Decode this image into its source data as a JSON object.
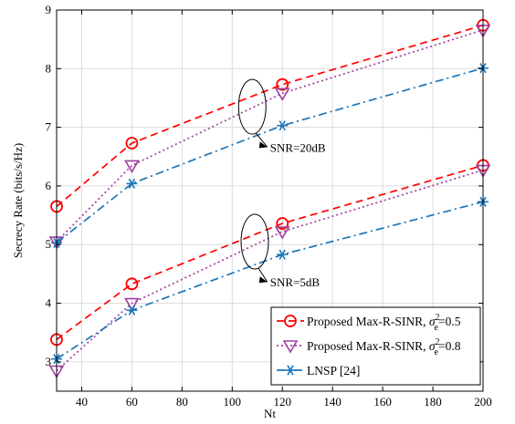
{
  "chart_data": {
    "type": "line",
    "xlabel": "Nt",
    "ylabel": "Secrecy Rate (bits/s/Hz)",
    "xlim": [
      30,
      200
    ],
    "ylim": [
      2.5,
      9
    ],
    "x_ticks": [
      40,
      60,
      80,
      100,
      120,
      140,
      160,
      180,
      200
    ],
    "y_ticks": [
      3,
      4,
      5,
      6,
      7,
      8,
      9
    ],
    "x": [
      30,
      60,
      120,
      200
    ],
    "grid": true,
    "legend_position": "bottom-right",
    "series": [
      {
        "name": "Proposed Max-R-SINR, σe²=0.5",
        "legend": {
          "prefix": "Proposed Max-R-SINR, ",
          "sigma": "σ",
          "sup": "2",
          "sub": "e",
          "suffix": "=0.5"
        },
        "snr": "20dB",
        "color": "#ff0000",
        "dash": "dashed",
        "marker": "circle",
        "values": [
          5.65,
          6.73,
          7.73,
          8.74
        ]
      },
      {
        "name": "Proposed Max-R-SINR, σe²=0.8",
        "legend": {
          "prefix": "Proposed Max-R-SINR, ",
          "sigma": "σ",
          "sup": "2",
          "sub": "e",
          "suffix": "=0.8"
        },
        "snr": "20dB",
        "color": "#a040a0",
        "dash": "dotted",
        "marker": "triangle-down",
        "values": [
          5.05,
          6.35,
          7.58,
          8.66
        ]
      },
      {
        "name": "LNSP [24]",
        "legend": {
          "prefix": "LNSP [24]",
          "sigma": "",
          "sup": "",
          "sub": "",
          "suffix": ""
        },
        "snr": "20dB",
        "color": "#1a75b8",
        "dash": "dashdot",
        "marker": "star",
        "values": [
          5.03,
          6.04,
          7.03,
          8.01
        ]
      },
      {
        "name": "Proposed Max-R-SINR, σe²=0.5",
        "snr": "5dB",
        "color": "#ff0000",
        "dash": "dashed",
        "marker": "circle",
        "values": [
          3.38,
          4.33,
          5.36,
          6.35
        ]
      },
      {
        "name": "Proposed Max-R-SINR, σe²=0.8",
        "snr": "5dB",
        "color": "#a040a0",
        "dash": "dotted",
        "marker": "triangle-down",
        "values": [
          2.85,
          4.0,
          5.22,
          6.27
        ]
      },
      {
        "name": "LNSP [24]",
        "snr": "5dB",
        "color": "#1a75b8",
        "dash": "dashdot",
        "marker": "star",
        "values": [
          3.05,
          3.88,
          4.83,
          5.73
        ]
      }
    ],
    "annotations": [
      {
        "text": "SNR=20dB",
        "ellipse_center": [
          108,
          7.35
        ],
        "label_at": [
          114,
          6.6
        ]
      },
      {
        "text": "SNR=5dB",
        "ellipse_center": [
          109,
          5.05
        ],
        "label_at": [
          114,
          4.3
        ]
      }
    ]
  }
}
